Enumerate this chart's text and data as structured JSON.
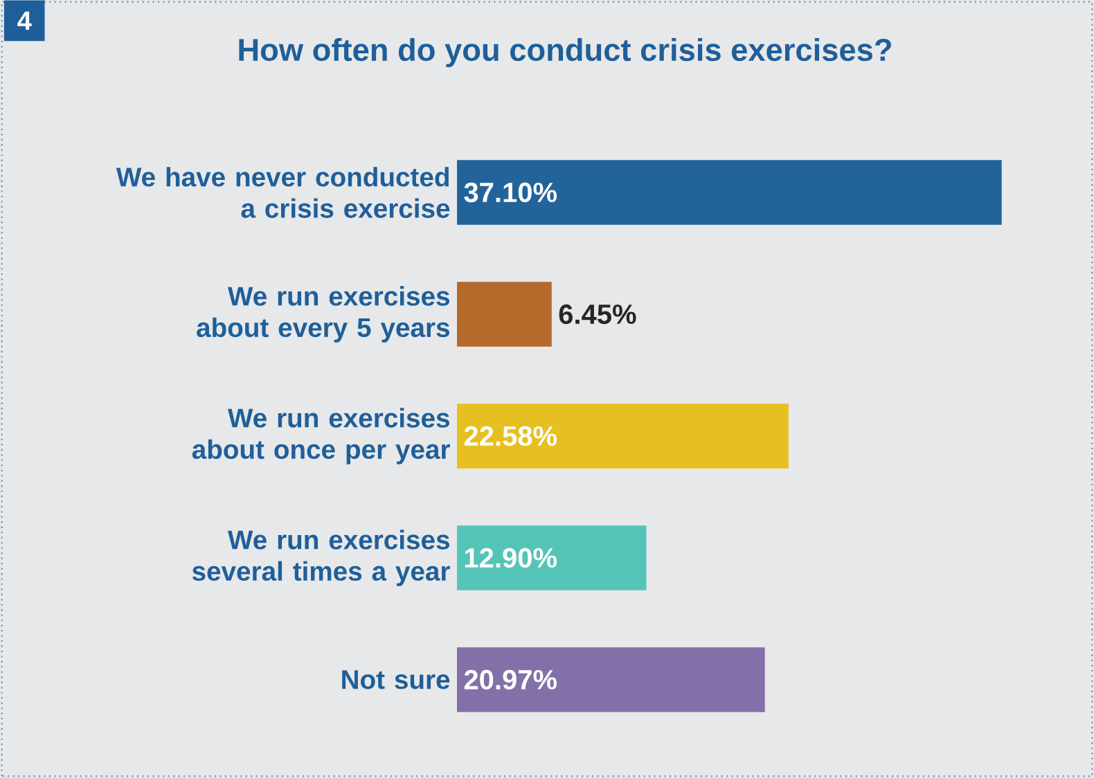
{
  "chart_data": {
    "type": "bar",
    "orientation": "horizontal",
    "title": "How often do you conduct crisis exercises?",
    "annotations": [
      "4"
    ],
    "categories": [
      "We have never conducted a crisis exercise",
      "We run exercises about every 5 years",
      "We run exercises about once per year",
      "We run exercises several times a year",
      "Not sure"
    ],
    "values": [
      37.1,
      6.45,
      22.58,
      12.9,
      20.97
    ],
    "colors": [
      "#22649a",
      "#b5692a",
      "#e6c020",
      "#55c4b8",
      "#8470a8"
    ],
    "value_labels": [
      "37.10%",
      "6.45%",
      "22.58%",
      "12.90%",
      "20.97%"
    ]
  }
}
